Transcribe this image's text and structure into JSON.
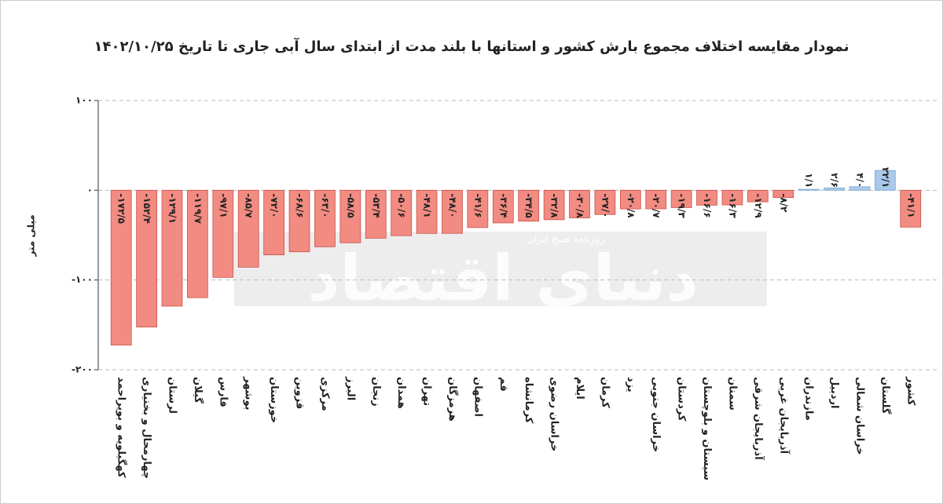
{
  "chart_data": {
    "type": "bar",
    "title": "نمودار مقایسه اختلاف مجموع بارش کشور و استانها با بلند مدت از ابتدای سال آبی جاری تا تاریخ ۱۴۰۲/۱۰/۲۵",
    "y_label": "میلی متر",
    "watermark": {
      "title": "دنیای اقتصاد",
      "subtitle": "روزنامه صبح ایران"
    },
    "categories": [
      "کهگیلویه و بویراحمد",
      "چهارمحال و بختیاری",
      "لرستان",
      "گیلان",
      "فارس",
      "بوشهر",
      "خوزستان",
      "قزوین",
      "مرکزی",
      "البرز",
      "زنجان",
      "همدان",
      "تهران",
      "هرمزگان",
      "اصفهان",
      "قم",
      "کرمانشاه",
      "خراسان رضوی",
      "ایلام",
      "کرمان",
      "یزد",
      "خراسان جنوبی",
      "کردستان",
      "سیستان و بلوچستان",
      "سمنان",
      "آذربایجان شرقی",
      "آذربایجان غربی",
      "مازندران",
      "اردبیل",
      "خراسان شمالی",
      "گلستان",
      "کشور"
    ],
    "values": [
      -172.5,
      -152.4,
      -129.1,
      -119.7,
      -97.1,
      -85.7,
      -72.0,
      -68.6,
      -63.0,
      -58.5,
      -53.4,
      -50.6,
      -48.1,
      -48.0,
      -41.6,
      -36.4,
      -34.5,
      -32.8,
      -30.8,
      -27.0,
      -20.8,
      -20.7,
      -19.3,
      -16.6,
      -16.3,
      -12.9,
      -8.2,
      1.1,
      2.6,
      4.0,
      22.1,
      -41.1
    ],
    "value_labels": [
      "-۱۷۲/۵",
      "-۱۵۲/۴",
      "-۱۲۹/۱",
      "-۱۱۹/۷",
      "-۹۷/۱",
      "-۸۵/۷",
      "-۷۲/۰",
      "-۶۸/۶",
      "-۶۳/۰",
      "-۵۸/۵",
      "-۵۳/۴",
      "-۵۰/۶",
      "-۴۸/۱",
      "-۴۸/۰",
      "-۴۱/۶",
      "-۳۶/۴",
      "-۳۴/۵",
      "-۳۲/۸",
      "-۳۰/۸",
      "-۲۷/۰",
      "-۲۰/۸",
      "-۲۰/۷",
      "-۱۹/۳",
      "-۱۶/۶",
      "-۱۶/۳",
      "-۱۲/۹",
      "-۸/۲",
      "۱/۱",
      "۲/۶",
      "۴/۰",
      "۲۲/۱",
      "-۴۱/۱"
    ],
    "color_negative": "#f28b82",
    "color_positive": "#a9c9ea",
    "ylim": [
      -200,
      100
    ],
    "yticks": [
      {
        "value": 100,
        "label": "۱۰۰"
      },
      {
        "value": 0,
        "label": "۰"
      },
      {
        "value": -100,
        "label": "-۱۰۰"
      },
      {
        "value": -200,
        "label": "-۲۰۰"
      }
    ],
    "grid": true
  }
}
